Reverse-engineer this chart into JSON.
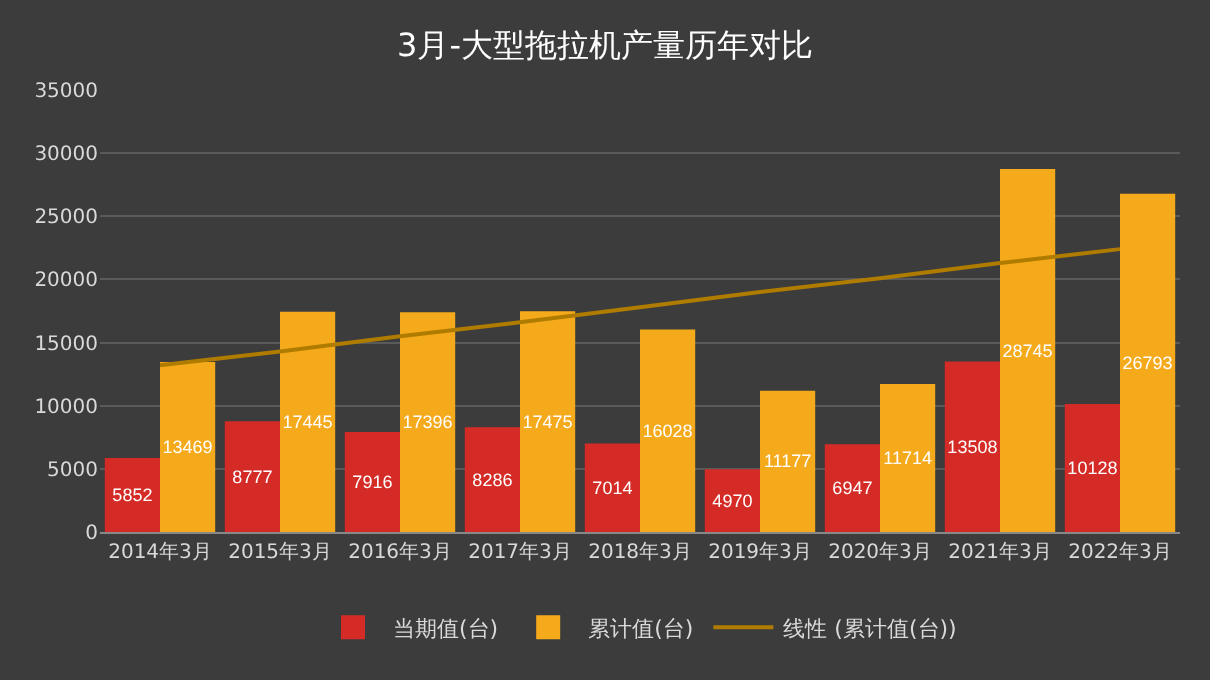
{
  "chart_data": {
    "type": "bar",
    "title": "3月-大型拖拉机产量历年对比",
    "categories": [
      "2014年3月",
      "2015年3月",
      "2016年3月",
      "2017年3月",
      "2018年3月",
      "2019年3月",
      "2020年3月",
      "2021年3月",
      "2022年3月"
    ],
    "series": [
      {
        "name": "当期值(台)",
        "color": "#d42b26",
        "values": [
          5852,
          8777,
          7916,
          8286,
          7014,
          4970,
          6947,
          13508,
          10128
        ],
        "value_labels": [
          "5852",
          "8777",
          "7916",
          "8286",
          "7014",
          "4970",
          "6947",
          "13508",
          "10128"
        ]
      },
      {
        "name": "累计值(台)",
        "color": "#f5aa1c",
        "values": [
          13469,
          17445,
          17396,
          17475,
          16028,
          11177,
          11714,
          28745,
          26793
        ],
        "value_labels": [
          "13469",
          "17445",
          "17396",
          "17475",
          "16028",
          "11177",
          "11714",
          "28745",
          "26793"
        ]
      },
      {
        "name": "线性 (累计值(台))",
        "type": "line",
        "color": "#b07c00",
        "line_style": "solid",
        "marker": "none",
        "values": [
          13200,
          14300,
          15500,
          16600,
          17800,
          19000,
          20100,
          21300,
          22400
        ]
      }
    ],
    "ylim": [
      0,
      35000
    ],
    "yticks": [
      0,
      5000,
      10000,
      15000,
      20000,
      25000,
      30000,
      35000
    ],
    "grid": "y",
    "legend": "bottom"
  }
}
